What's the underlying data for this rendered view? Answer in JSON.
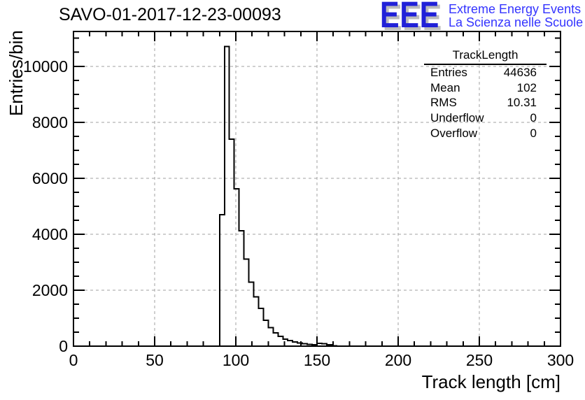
{
  "title": "SAVO-01-2017-12-23-00093",
  "logo": {
    "acronym": "EEE",
    "line1": "Extreme Energy Events",
    "line2": "La Scienza nelle Scuole",
    "blue": "#2121d8",
    "text_blue": "#3434ff",
    "shadow_gray": "#bcbcbc"
  },
  "stats": {
    "title": "TrackLength",
    "rows": [
      {
        "label": "Entries",
        "value": "44636"
      },
      {
        "label": "Mean",
        "value": "102"
      },
      {
        "label": "RMS",
        "value": "10.31"
      },
      {
        "label": "Underflow",
        "value": "0"
      },
      {
        "label": "Overflow",
        "value": "0"
      }
    ]
  },
  "chart_data": {
    "type": "bar",
    "subtype": "histogram-outline",
    "title": "SAVO-01-2017-12-23-00093",
    "xlabel": "Track length [cm]",
    "ylabel": "Entries/bin",
    "xlim": [
      0,
      300
    ],
    "ylim": [
      0,
      11243
    ],
    "x_major_ticks": [
      0,
      50,
      100,
      150,
      200,
      250,
      300
    ],
    "x_minor_step": 10,
    "y_major_ticks": [
      0,
      2000,
      4000,
      6000,
      8000,
      10000
    ],
    "y_minor_step": 500,
    "grid": "dashed gray lines at major ticks, both axes",
    "legend": "none",
    "line_color": "#000000",
    "grid_color": "#a0a0a0",
    "bins": {
      "width": 3,
      "left_edges": [
        90,
        93,
        96,
        99,
        102,
        105,
        108,
        111,
        114,
        117,
        120,
        123,
        126,
        129,
        132,
        135,
        138,
        141,
        144,
        147,
        150,
        153,
        156,
        159,
        162
      ],
      "counts": [
        4700,
        10700,
        7400,
        5620,
        4120,
        3110,
        2280,
        1760,
        1350,
        920,
        660,
        480,
        350,
        255,
        195,
        150,
        115,
        88,
        68,
        55,
        100,
        92,
        45,
        18,
        5
      ],
      "all_other_bins": 0
    }
  }
}
